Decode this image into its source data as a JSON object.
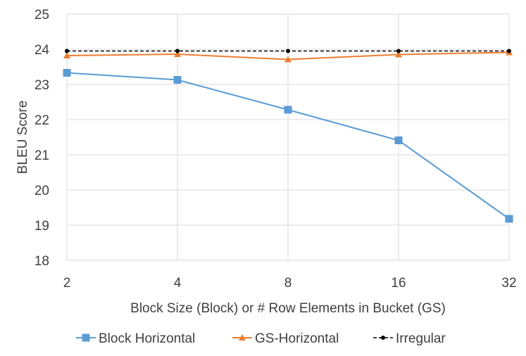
{
  "chart_data": {
    "type": "line",
    "x": [
      "2",
      "4",
      "8",
      "16",
      "32"
    ],
    "xlabel": "Block Size (Block) or # Row Elements in Bucket (GS)",
    "ylabel": "BLEU Score",
    "ylim": [
      18,
      25
    ],
    "yticks": [
      "18",
      "19",
      "20",
      "21",
      "22",
      "23",
      "24",
      "25"
    ],
    "grid": true,
    "legend_position": "bottom",
    "series": [
      {
        "name": "Block Horizontal",
        "values": [
          23.33,
          23.13,
          22.28,
          21.41,
          19.18
        ],
        "color": "#5B9BD5",
        "marker": "square",
        "dash": "solid"
      },
      {
        "name": "GS-Horizontal",
        "values": [
          23.82,
          23.86,
          23.71,
          23.85,
          23.91
        ],
        "color": "#ED7D31",
        "marker": "triangle",
        "dash": "solid"
      },
      {
        "name": "Irregular",
        "values": [
          23.95,
          23.95,
          23.95,
          23.95,
          23.95
        ],
        "color": "#000000",
        "marker": "circle",
        "dash": "dashed"
      }
    ]
  }
}
